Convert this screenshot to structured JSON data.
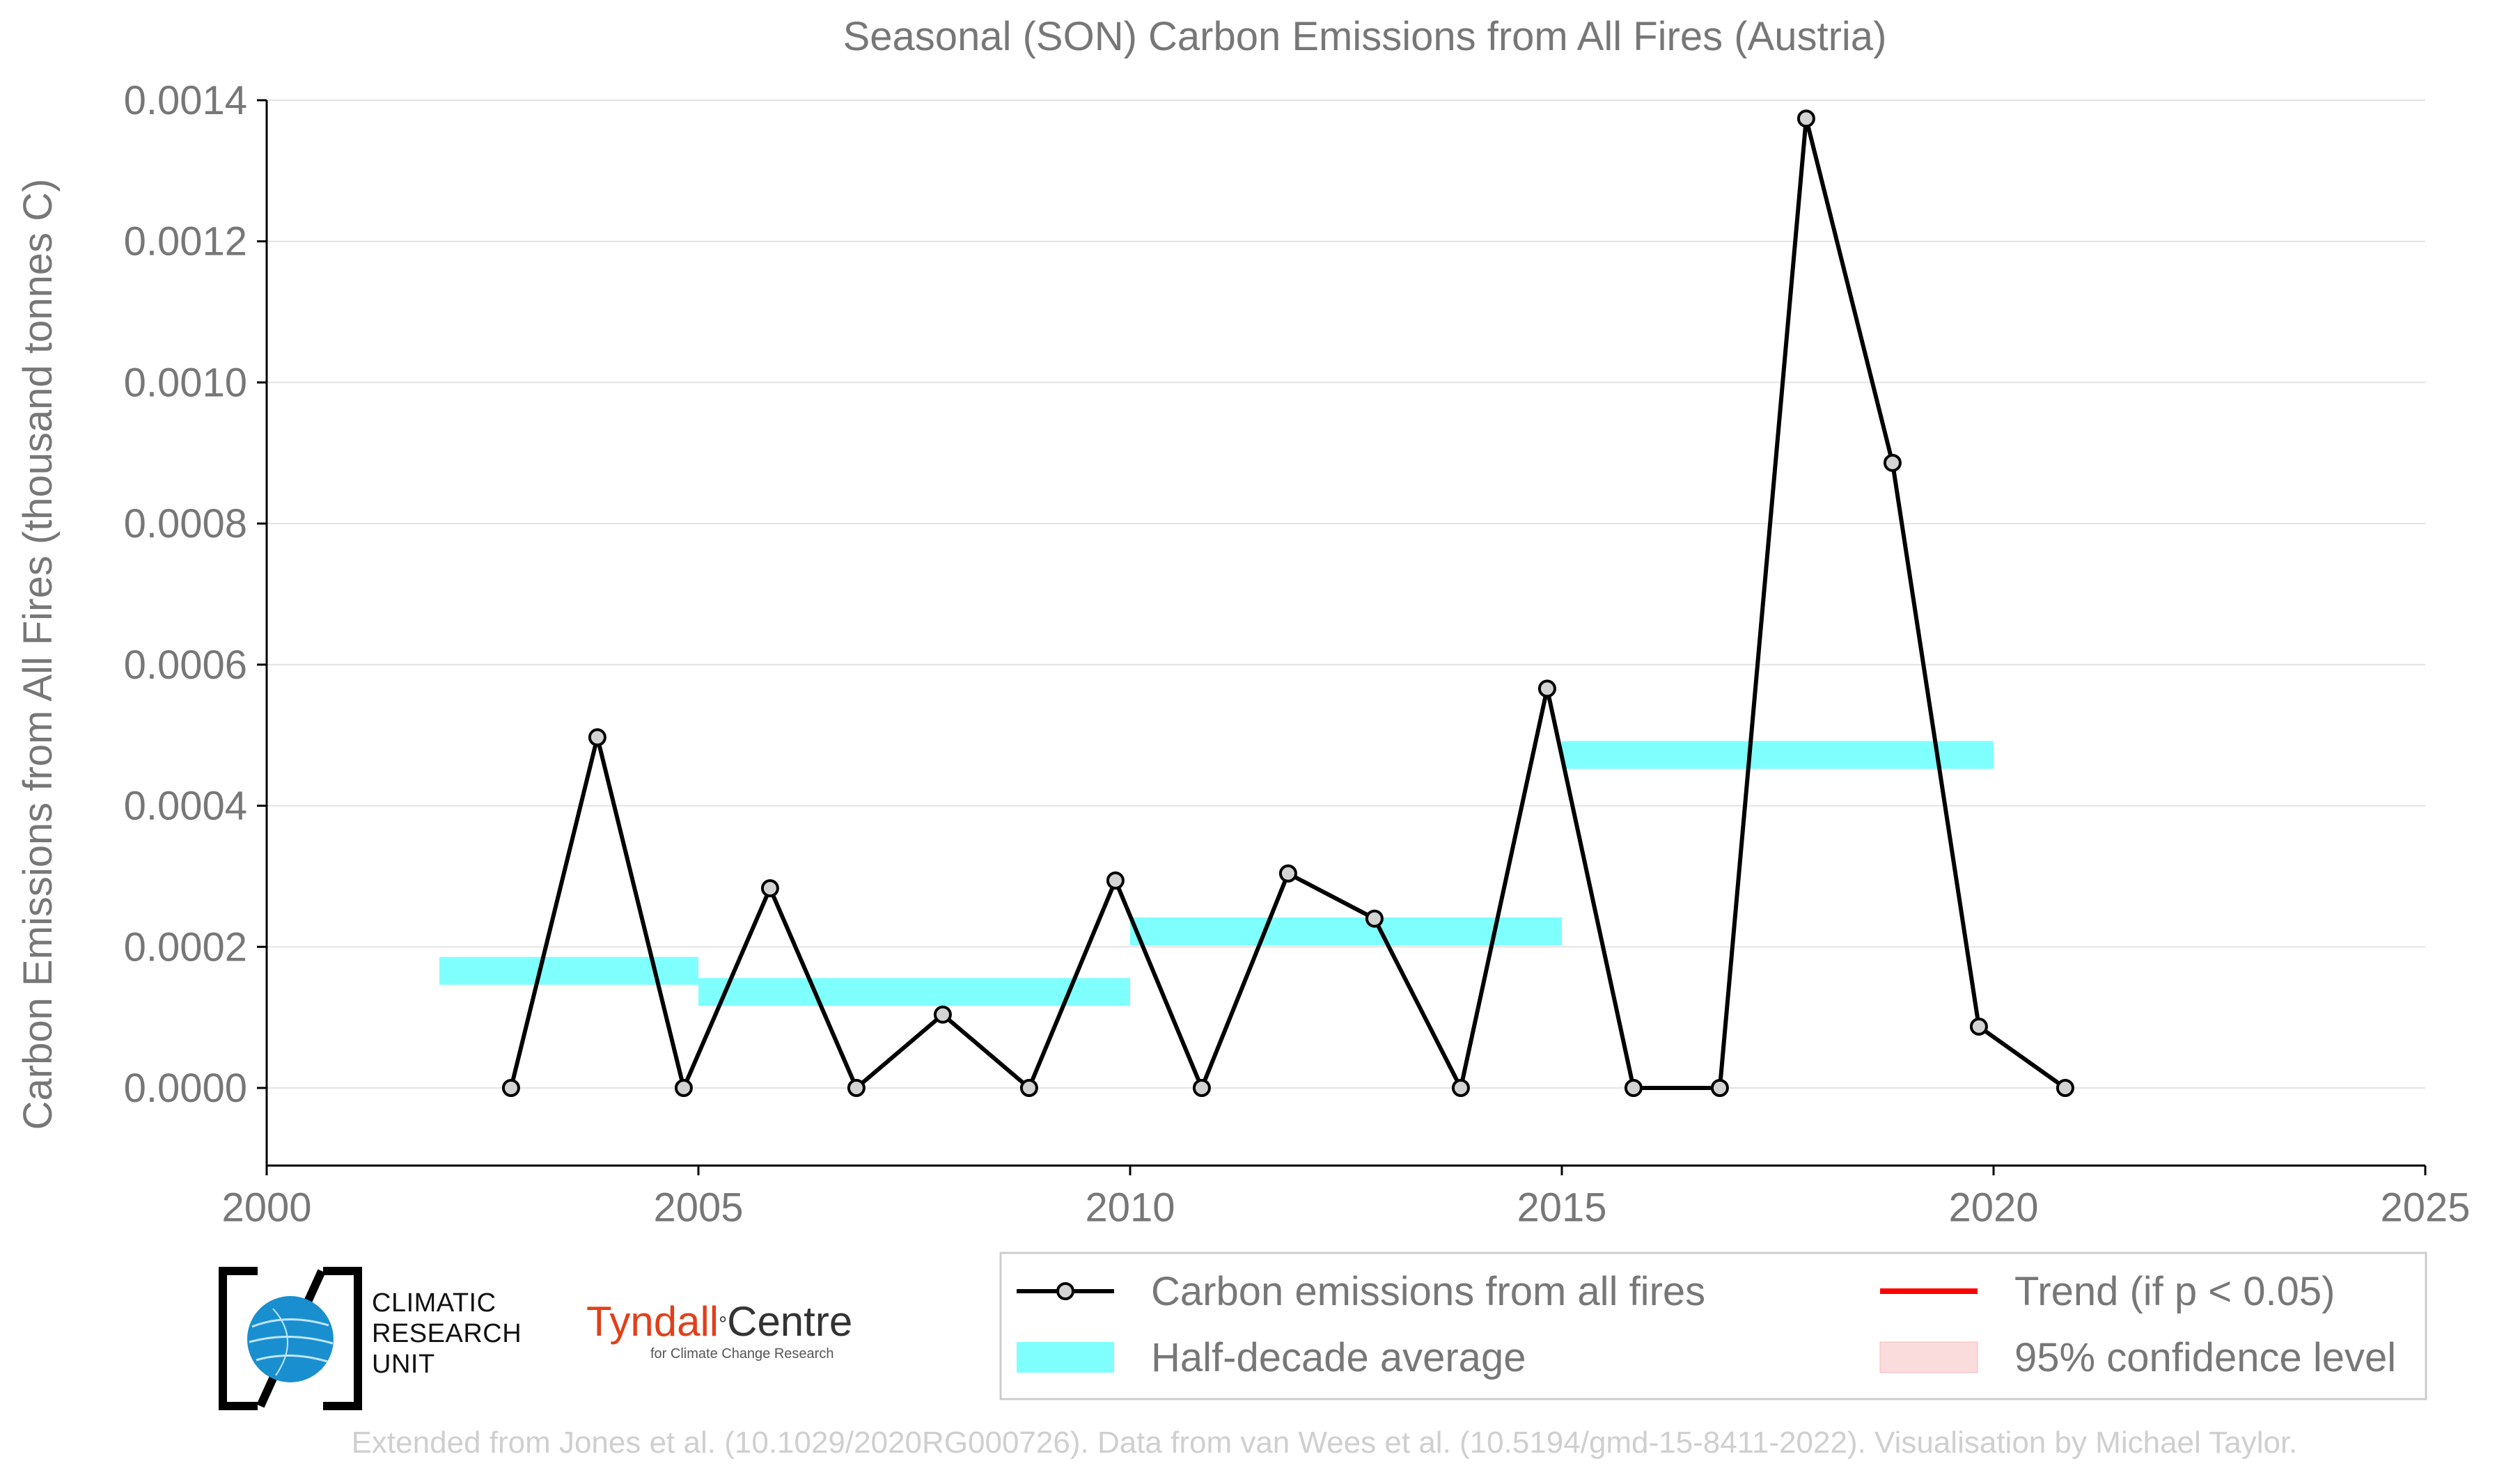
{
  "chart_data": {
    "type": "line",
    "title": "Seasonal (SON) Carbon Emissions from All Fires (Austria)",
    "xlabel": "",
    "ylabel": "Carbon Emissions from All Fires (thousand tonnes C)",
    "xlim": [
      2000,
      2025
    ],
    "ylim": [
      -0.00011,
      0.0014
    ],
    "x_ticks": [
      2000,
      2005,
      2010,
      2015,
      2020,
      2025
    ],
    "y_ticks": [
      0.0,
      0.0002,
      0.0004,
      0.0006,
      0.0008,
      0.001,
      0.0012,
      0.0014
    ],
    "x_tick_labels": [
      "2000",
      "2005",
      "2010",
      "2015",
      "2020",
      "2025"
    ],
    "y_tick_labels": [
      "0.0000",
      "0.0002",
      "0.0004",
      "0.0006",
      "0.0008",
      "0.0010",
      "0.0012",
      "0.0014"
    ],
    "grid": "horizontal",
    "series": [
      {
        "name": "Carbon emissions from all fires",
        "type": "line",
        "color": "#000000",
        "marker_fill": "#d3d3d3",
        "x": [
          2002.83,
          2003.83,
          2004.83,
          2005.83,
          2006.83,
          2007.83,
          2008.83,
          2009.83,
          2010.83,
          2011.83,
          2012.83,
          2013.83,
          2014.83,
          2015.83,
          2016.83,
          2017.83,
          2018.83,
          2019.83,
          2020.83
        ],
        "y": [
          0.0,
          0.000497,
          0.0,
          0.000283,
          0.0,
          0.000104,
          0.0,
          0.000294,
          0.0,
          0.000304,
          0.00024,
          0.0,
          0.000566,
          0.0,
          0.0,
          0.001374,
          0.000886,
          8.7e-05,
          0.0
        ]
      },
      {
        "name": "Half-decade average",
        "type": "step-bar",
        "color": "#80ffff",
        "segments": [
          {
            "x0": 2002,
            "x1": 2005,
            "y": 0.000166
          },
          {
            "x0": 2005,
            "x1": 2010,
            "y": 0.000136
          },
          {
            "x0": 2010,
            "x1": 2015,
            "y": 0.000222
          },
          {
            "x0": 2015,
            "x1": 2020,
            "y": 0.000472
          }
        ]
      }
    ],
    "legend": {
      "placement": "bottom-right",
      "entries": [
        {
          "label": "Carbon emissions from all fires",
          "symbol": "line-marker",
          "color": "#000000"
        },
        {
          "label": "Trend (if p < 0.05)",
          "symbol": "line",
          "color": "#ff0000"
        },
        {
          "label": "Half-decade average",
          "symbol": "patch",
          "color": "#80ffff"
        },
        {
          "label": "95% confidence level",
          "symbol": "patch",
          "color": "#fbdcdc"
        }
      ]
    }
  },
  "logos": {
    "cru": {
      "lines": [
        "CLIMATIC",
        "RESEARCH",
        "UNIT"
      ]
    },
    "tyndall": {
      "name_a": "Tyndall",
      "degree": "°",
      "name_b": "Centre",
      "subtitle": "for Climate Change Research"
    }
  },
  "credit": "Extended from Jones et al. (10.1029/2020RG000726). Data from van Wees et al. (10.5194/gmd-15-8411-2022). Visualisation by Michael Taylor."
}
